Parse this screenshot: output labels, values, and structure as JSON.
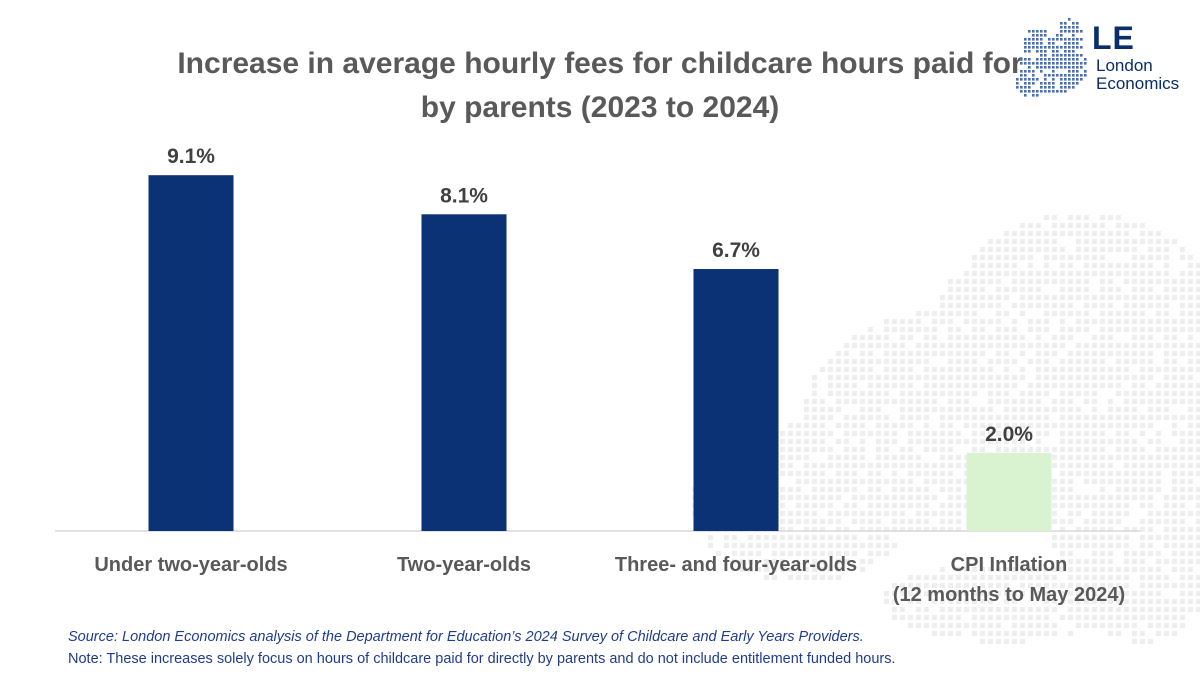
{
  "chart_data": {
    "type": "bar",
    "title": "Increase in average hourly fees for childcare hours paid for by parents (2023 to 2024)",
    "title_lines": [
      "Increase in average hourly fees for childcare hours paid for",
      "by parents (2023 to 2024)"
    ],
    "categories": [
      [
        "Under two-year-olds"
      ],
      [
        "Two-year-olds"
      ],
      [
        "Three- and four-year-olds"
      ],
      [
        "CPI Inflation",
        "(12 months to May 2024)"
      ]
    ],
    "values": [
      9.1,
      8.1,
      6.7,
      2.0
    ],
    "data_labels": [
      "9.1%",
      "8.1%",
      "6.7%",
      "2.0%"
    ],
    "bar_colors": [
      "#0b3275",
      "#0b3275",
      "#0b3275",
      "#d9f2d0"
    ],
    "ylim": [
      0,
      10
    ],
    "grid": false,
    "legend": "none"
  },
  "logo": {
    "mark": "LE",
    "name_lines": [
      "London",
      "Economics"
    ],
    "color": "#0b2d6b"
  },
  "notes": {
    "source": "Source: London Economics analysis of the Department for Education’s 2024 Survey of Childcare and Early Years Providers.",
    "note": "Note: These increases solely focus on hours of childcare paid for directly by parents and do not include entitlement funded hours."
  }
}
